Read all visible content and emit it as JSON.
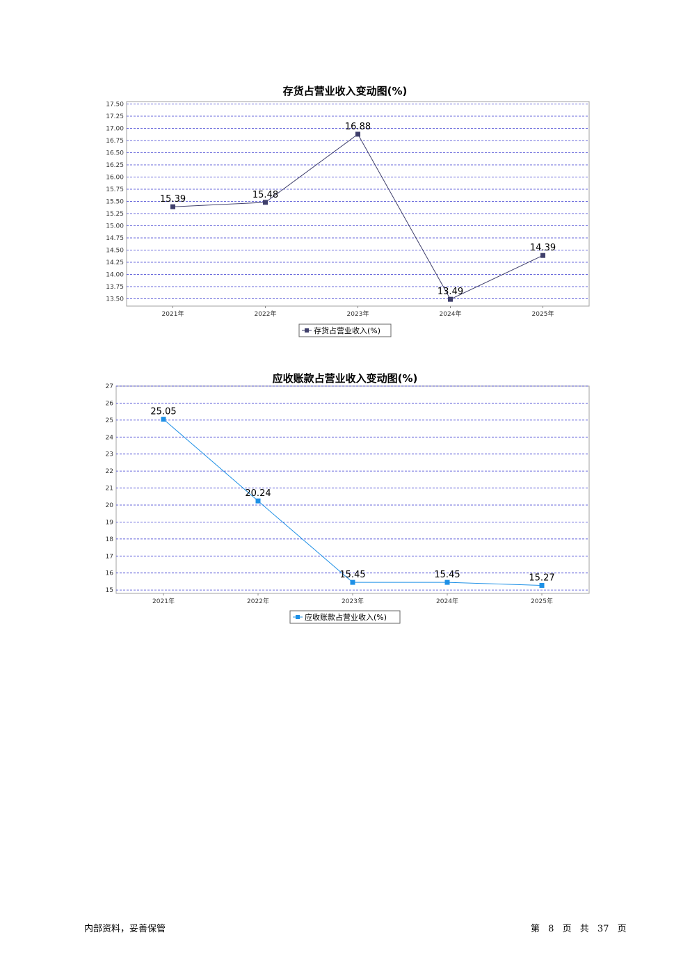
{
  "chart_data": [
    {
      "type": "line",
      "title": "存货占营业收入变动图(%)",
      "categories": [
        "2021年",
        "2022年",
        "2023年",
        "2024年",
        "2025年"
      ],
      "series": [
        {
          "name": "存货占营业收入(%)",
          "values": [
            15.39,
            15.48,
            16.88,
            13.49,
            14.39
          ],
          "color": "#3f3f6b"
        }
      ],
      "yticks": [
        "17.50",
        "17.25",
        "17.00",
        "16.75",
        "16.50",
        "16.25",
        "16.00",
        "15.75",
        "15.50",
        "15.25",
        "15.00",
        "14.75",
        "14.50",
        "14.25",
        "14.00",
        "13.75",
        "13.50"
      ],
      "ylim": [
        13.35,
        17.55
      ],
      "grid": true,
      "legend": "bottom"
    },
    {
      "type": "line",
      "title": "应收账款占营业收入变动图(%)",
      "categories": [
        "2021年",
        "2022年",
        "2023年",
        "2024年",
        "2025年"
      ],
      "series": [
        {
          "name": "应收账款占营业收入(%)",
          "values": [
            25.05,
            20.24,
            15.45,
            15.45,
            15.27
          ],
          "color": "#1e90e6"
        }
      ],
      "yticks": [
        "27",
        "26",
        "25",
        "24",
        "23",
        "22",
        "21",
        "20",
        "19",
        "18",
        "17",
        "16",
        "15"
      ],
      "ylim": [
        14.8,
        27
      ],
      "grid": true,
      "legend": "bottom"
    }
  ],
  "footer": {
    "left": "内部资料，妥善保管",
    "page_prefix": "第",
    "page_number": "8",
    "page_unit": "页",
    "total_prefix": "共",
    "total_pages": "37",
    "total_unit": "页"
  }
}
